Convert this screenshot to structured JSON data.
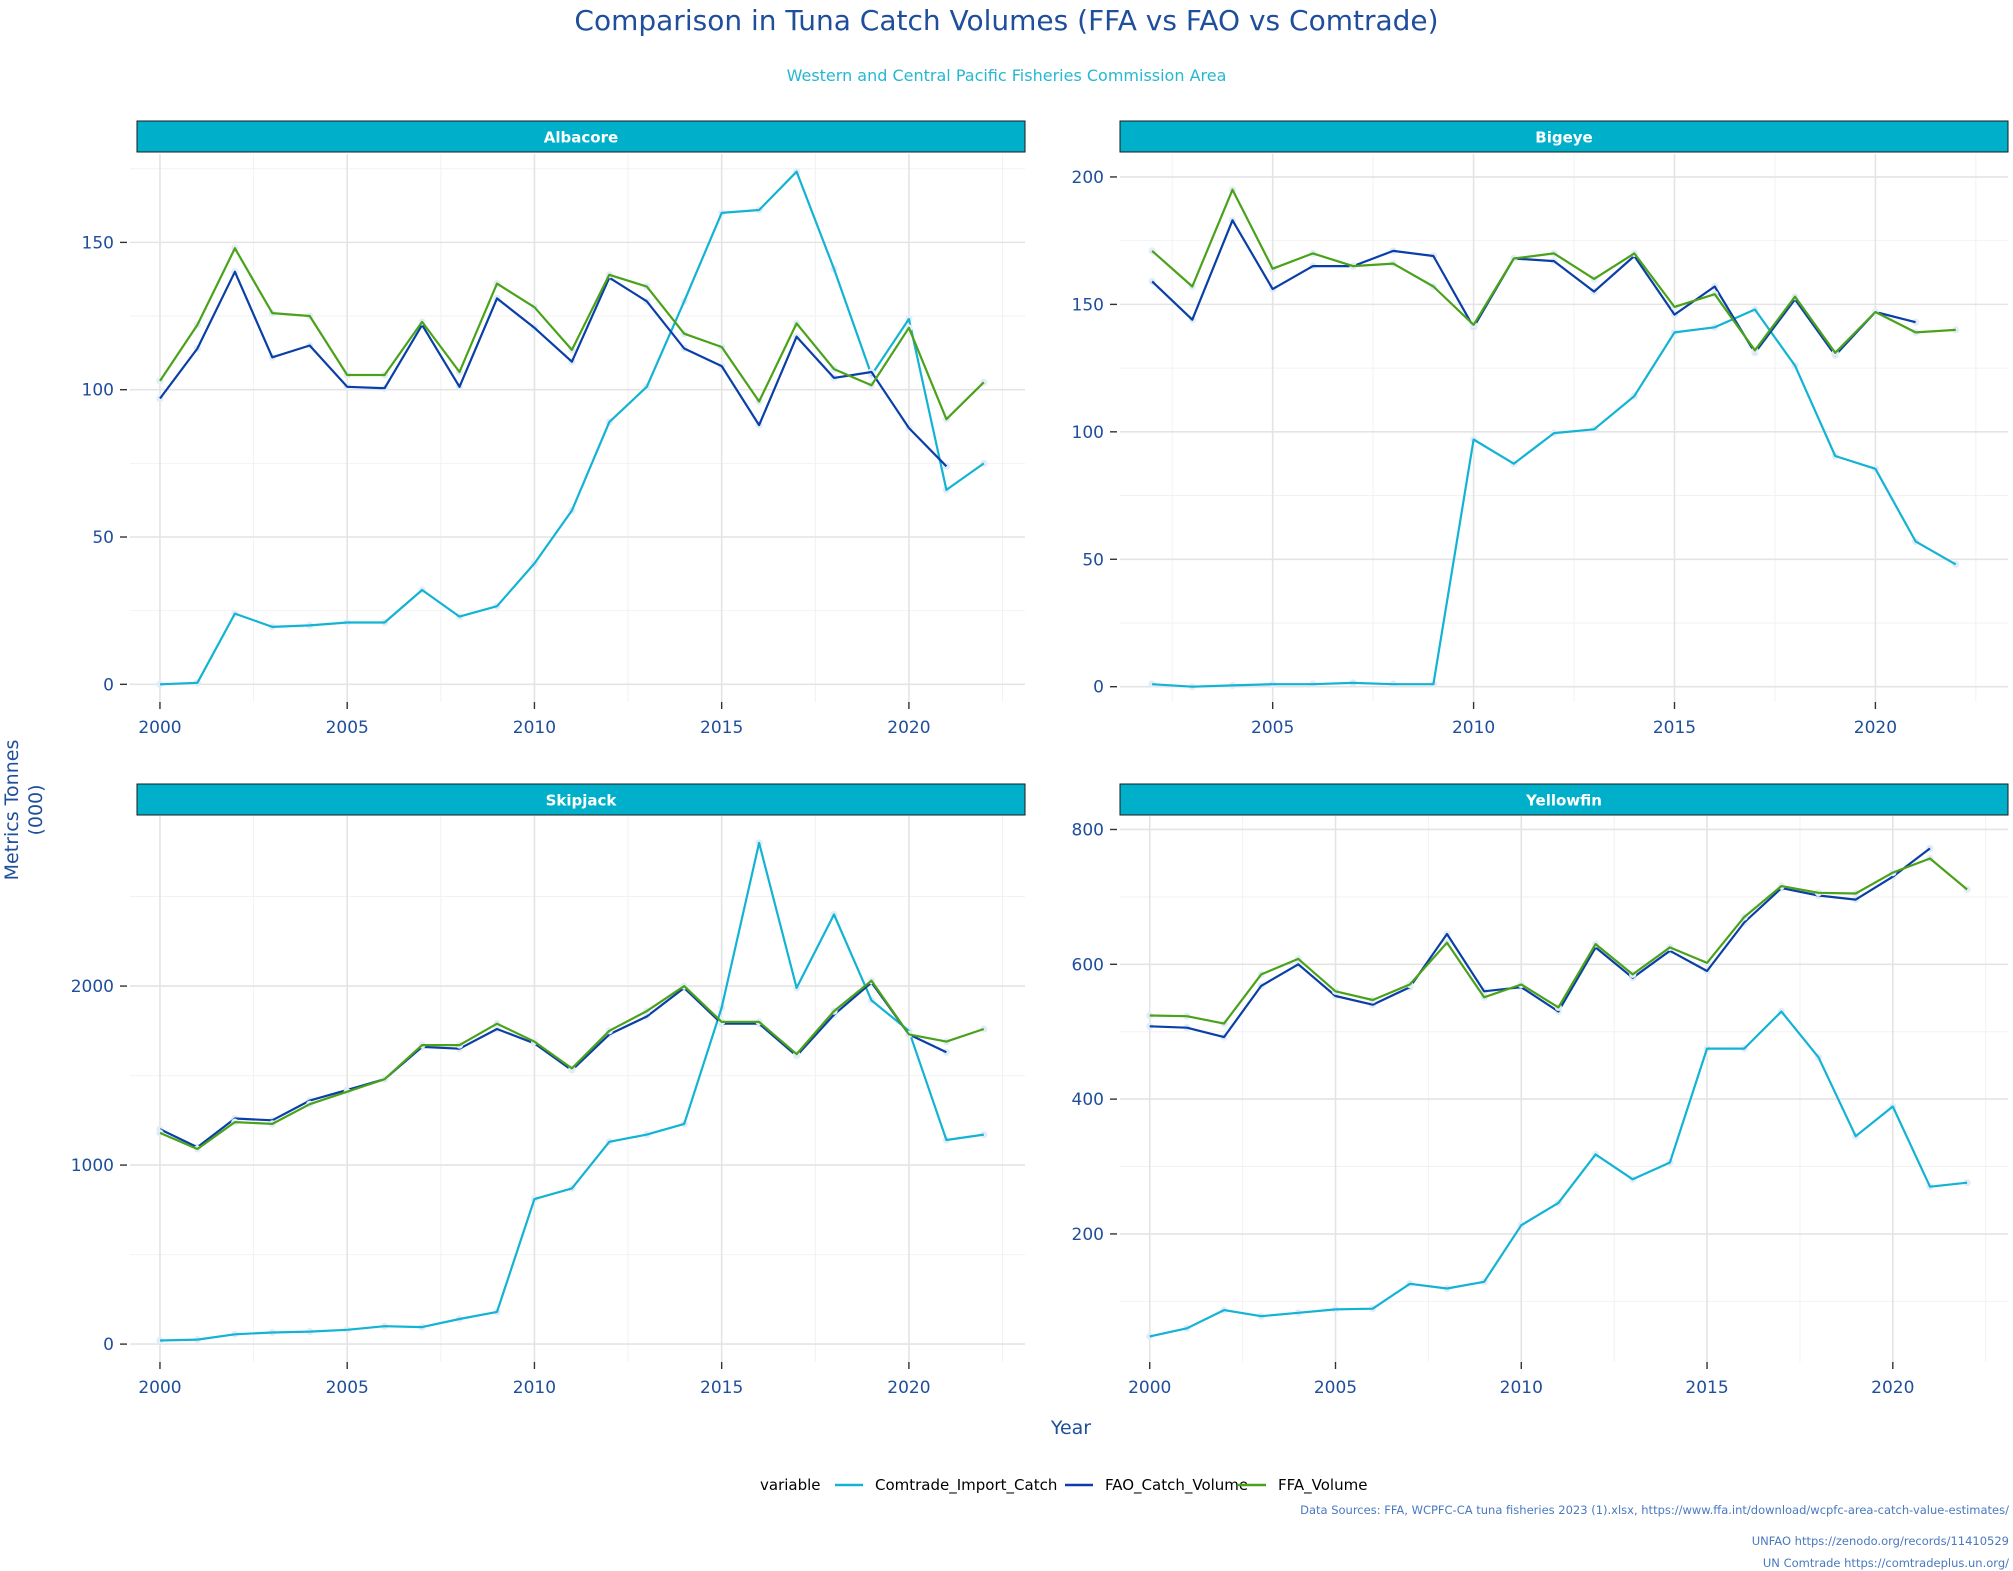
{
  "title": "Comparison in Tuna Catch Volumes (FFA vs FAO vs Comtrade)",
  "subtitle": "Western and Central Pacific Fisheries Commission Area",
  "ylabel": [
    "Metrics Tonnes",
    "(000)"
  ],
  "xlabel": "Year",
  "legend_title": "variable",
  "sources": [
    "Data Sources: FFA, WCPFC-CA tuna fisheries 2023 (1).xlsx, https://www.ffa.int/download/wcpfc-area-catch-value-estimates/",
    "UNFAO https://zenodo.org/records/11410529",
    "UN Comtrade https://comtradeplus.un.org/"
  ],
  "colors": {
    "Comtrade_Import_Catch": "#12b3d3",
    "FAO_Catch_Volume": "#0a3fa8",
    "FFA_Volume": "#4aa21a",
    "strip": "#00b0ca",
    "axis_text": "#1f4e9c",
    "grid_major": "#e4e4e4",
    "grid_minor": "#f2f2f2"
  },
  "chart_data": [
    {
      "type": "line",
      "panel": "Albacore",
      "xlim": [
        1999.2,
        2023.1
      ],
      "ylim": [
        -6,
        180
      ],
      "x_ticks": [
        2000,
        2005,
        2010,
        2015,
        2020
      ],
      "y_ticks": [
        0,
        50,
        100,
        150
      ],
      "series": [
        {
          "name": "Comtrade_Import_Catch",
          "x": [
            2000,
            2001,
            2002,
            2003,
            2004,
            2005,
            2006,
            2007,
            2008,
            2009,
            2010,
            2011,
            2012,
            2013,
            2014,
            2015,
            2016,
            2017,
            2018,
            2019,
            2020,
            2021,
            2022
          ],
          "y": [
            0,
            0.5,
            24,
            19.5,
            20,
            21,
            21,
            32,
            23,
            26.5,
            41,
            59,
            89,
            101,
            130,
            160,
            161,
            174,
            141,
            105,
            124,
            66,
            75
          ]
        },
        {
          "name": "FAO_Catch_Volume",
          "x": [
            2000,
            2001,
            2002,
            2003,
            2004,
            2005,
            2006,
            2007,
            2008,
            2009,
            2010,
            2011,
            2012,
            2013,
            2014,
            2015,
            2016,
            2017,
            2018,
            2019,
            2020,
            2021
          ],
          "y": [
            97,
            114,
            140,
            111,
            115,
            101,
            100.5,
            122,
            101,
            131,
            121,
            109.5,
            138,
            130,
            114,
            108,
            88,
            118,
            104,
            106,
            87,
            74
          ]
        },
        {
          "name": "FFA_Volume",
          "x": [
            2000,
            2001,
            2002,
            2003,
            2004,
            2005,
            2006,
            2007,
            2008,
            2009,
            2010,
            2011,
            2012,
            2013,
            2014,
            2015,
            2016,
            2017,
            2018,
            2019,
            2020,
            2021,
            2022
          ],
          "y": [
            103,
            122,
            148,
            126,
            125,
            105,
            105,
            123,
            106,
            136,
            128,
            113.5,
            139,
            135,
            119,
            114.5,
            96,
            122.5,
            107,
            101.5,
            121,
            90,
            102.5
          ]
        }
      ]
    },
    {
      "type": "line",
      "panel": "Bigeye",
      "xlim": [
        2001.2,
        2023.3
      ],
      "ylim": [
        -6,
        209
      ],
      "x_ticks": [
        2005,
        2010,
        2015,
        2020
      ],
      "y_ticks": [
        0,
        50,
        100,
        150,
        200
      ],
      "series": [
        {
          "name": "Comtrade_Import_Catch",
          "x": [
            2002,
            2003,
            2004,
            2005,
            2006,
            2007,
            2008,
            2009,
            2010,
            2011,
            2012,
            2013,
            2014,
            2015,
            2016,
            2017,
            2018,
            2019,
            2020,
            2021,
            2022
          ],
          "y": [
            1,
            0,
            0.5,
            1,
            1,
            1.5,
            1,
            1,
            97,
            87.5,
            99.5,
            101,
            114,
            139,
            141,
            148,
            126,
            90.5,
            85.5,
            57,
            48
          ]
        },
        {
          "name": "FAO_Catch_Volume",
          "x": [
            2002,
            2003,
            2004,
            2005,
            2006,
            2007,
            2008,
            2009,
            2010,
            2011,
            2012,
            2013,
            2014,
            2015,
            2016,
            2017,
            2018,
            2019,
            2020,
            2021
          ],
          "y": [
            159,
            144,
            183,
            156,
            165,
            165,
            171,
            169,
            141,
            168,
            167,
            155,
            169,
            146,
            157,
            131,
            152,
            130,
            147,
            143
          ]
        },
        {
          "name": "FFA_Volume",
          "x": [
            2002,
            2003,
            2004,
            2005,
            2006,
            2007,
            2008,
            2009,
            2010,
            2011,
            2012,
            2013,
            2014,
            2015,
            2016,
            2017,
            2018,
            2019,
            2020,
            2021,
            2022
          ],
          "y": [
            171,
            157,
            195,
            164,
            170,
            165,
            166,
            157,
            142,
            168,
            170,
            160,
            170,
            149,
            154,
            132,
            153,
            131,
            147,
            139,
            140
          ]
        }
      ]
    },
    {
      "type": "line",
      "panel": "Skipjack",
      "xlim": [
        1999.2,
        2023.1
      ],
      "ylim": [
        -100,
        2950
      ],
      "x_ticks": [
        2000,
        2005,
        2010,
        2015,
        2020
      ],
      "y_ticks": [
        0,
        1000,
        2000
      ],
      "series": [
        {
          "name": "Comtrade_Import_Catch",
          "x": [
            2000,
            2001,
            2002,
            2003,
            2004,
            2005,
            2006,
            2007,
            2008,
            2009,
            2010,
            2011,
            2012,
            2013,
            2014,
            2015,
            2016,
            2017,
            2018,
            2019,
            2020,
            2021,
            2022
          ],
          "y": [
            20,
            25,
            55,
            65,
            70,
            80,
            100,
            95,
            140,
            180,
            810,
            870,
            1130,
            1170,
            1230,
            1880,
            2800,
            1990,
            2400,
            1920,
            1750,
            1140,
            1170
          ]
        },
        {
          "name": "FAO_Catch_Volume",
          "x": [
            2000,
            2001,
            2002,
            2003,
            2004,
            2005,
            2006,
            2007,
            2008,
            2009,
            2010,
            2011,
            2012,
            2013,
            2014,
            2015,
            2016,
            2017,
            2018,
            2019,
            2020,
            2021
          ],
          "y": [
            1200,
            1100,
            1260,
            1250,
            1360,
            1420,
            1480,
            1660,
            1650,
            1760,
            1680,
            1530,
            1730,
            1830,
            1990,
            1790,
            1790,
            1610,
            1840,
            2020,
            1730,
            1630
          ]
        },
        {
          "name": "FFA_Volume",
          "x": [
            2000,
            2001,
            2002,
            2003,
            2004,
            2005,
            2006,
            2007,
            2008,
            2009,
            2010,
            2011,
            2012,
            2013,
            2014,
            2015,
            2016,
            2017,
            2018,
            2019,
            2020,
            2021,
            2022
          ],
          "y": [
            1180,
            1090,
            1240,
            1230,
            1340,
            1410,
            1480,
            1670,
            1670,
            1790,
            1690,
            1540,
            1750,
            1860,
            2000,
            1800,
            1800,
            1620,
            1860,
            2030,
            1730,
            1690,
            1760
          ]
        }
      ]
    },
    {
      "type": "line",
      "panel": "Yellowfin",
      "xlim": [
        1999.2,
        2023.1
      ],
      "ylim": [
        10,
        820
      ],
      "x_ticks": [
        2000,
        2005,
        2010,
        2015,
        2020
      ],
      "y_ticks": [
        200,
        400,
        600,
        800
      ],
      "series": [
        {
          "name": "Comtrade_Import_Catch",
          "x": [
            2000,
            2001,
            2002,
            2003,
            2004,
            2005,
            2006,
            2007,
            2008,
            2009,
            2010,
            2011,
            2012,
            2013,
            2014,
            2015,
            2016,
            2017,
            2018,
            2019,
            2020,
            2021,
            2022
          ],
          "y": [
            48,
            60,
            87,
            78,
            83,
            88,
            89,
            126,
            119,
            129,
            213,
            246,
            318,
            281,
            306,
            475,
            475,
            530,
            462,
            345,
            389,
            270,
            276
          ]
        },
        {
          "name": "FAO_Catch_Volume",
          "x": [
            2000,
            2001,
            2002,
            2003,
            2004,
            2005,
            2006,
            2007,
            2008,
            2009,
            2010,
            2011,
            2012,
            2013,
            2014,
            2015,
            2016,
            2017,
            2018,
            2019,
            2020,
            2021
          ],
          "y": [
            508,
            506,
            492,
            568,
            600,
            553,
            540,
            566,
            645,
            560,
            566,
            530,
            625,
            580,
            620,
            590,
            662,
            713,
            702,
            696,
            730,
            772
          ]
        },
        {
          "name": "FFA_Volume",
          "x": [
            2000,
            2001,
            2002,
            2003,
            2004,
            2005,
            2006,
            2007,
            2008,
            2009,
            2010,
            2011,
            2012,
            2013,
            2014,
            2015,
            2016,
            2017,
            2018,
            2019,
            2020,
            2021,
            2022
          ],
          "y": [
            524,
            523,
            512,
            585,
            608,
            560,
            547,
            570,
            632,
            551,
            570,
            536,
            630,
            585,
            625,
            602,
            670,
            716,
            706,
            705,
            736,
            757,
            711
          ]
        }
      ]
    }
  ]
}
